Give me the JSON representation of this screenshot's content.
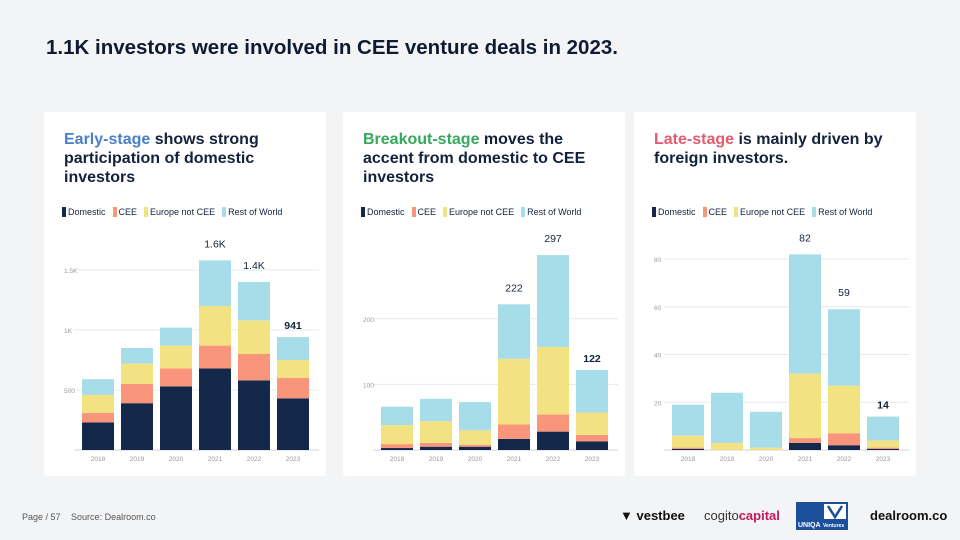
{
  "page_title": "1.1K investors were involved in CEE venture deals in 2023.",
  "colors": {
    "Domestic": "#13284b",
    "CEE": "#f8957a",
    "Europe not CEE": "#f2e282",
    "Rest of World": "#a6dde9",
    "early": "#4a80c9",
    "breakout": "#35a95a",
    "late": "#e25b6e"
  },
  "legend": [
    "Domestic",
    "CEE",
    "Europe not CEE",
    "Rest of World"
  ],
  "footer": {
    "page": "Page / 57",
    "source": "Source: Dealroom.co"
  },
  "logos": {
    "vestbee": "vestbee",
    "cogito": "cogito",
    "cogito_b": "capital",
    "uniqa": "UNIQA",
    "uniqa_v": "Ventures",
    "dealroom": "dealroom.co"
  },
  "cards": [
    {
      "hl": "Early-stage",
      "rest": " shows strong participation of domestic investors",
      "hl_color": "#4a80c9"
    },
    {
      "hl": "Breakout-stage",
      "rest": " moves the accent from domestic to CEE investors",
      "hl_color": "#35a95a"
    },
    {
      "hl": "Late-stage",
      "rest": " is mainly driven by foreign investors.",
      "hl_color": "#e25b6e"
    }
  ],
  "chart_data": [
    {
      "type": "bar",
      "stacked": true,
      "categories": [
        "2018",
        "2019",
        "2020",
        "2021",
        "2022",
        "2023"
      ],
      "ylim": [
        0,
        1750
      ],
      "yticks": [
        500,
        1000,
        1500
      ],
      "ytick_labels": [
        "500",
        "1K",
        "1.5K"
      ],
      "grid": true,
      "series": [
        {
          "name": "Domestic",
          "values": [
            230,
            390,
            530,
            680,
            580,
            430
          ]
        },
        {
          "name": "CEE",
          "values": [
            80,
            160,
            150,
            190,
            220,
            170
          ]
        },
        {
          "name": "Europe not CEE",
          "values": [
            150,
            170,
            190,
            330,
            280,
            150
          ]
        },
        {
          "name": "Rest of World",
          "values": [
            130,
            130,
            150,
            380,
            320,
            191
          ]
        }
      ],
      "total_labels": [
        "",
        "",
        "",
        "1.6K",
        "1.4K",
        "941"
      ],
      "bold_label_index": 5
    },
    {
      "type": "bar",
      "stacked": true,
      "categories": [
        "2018",
        "2019",
        "2020",
        "2021",
        "2022",
        "2023"
      ],
      "ylim": [
        0,
        320
      ],
      "yticks": [
        100,
        200
      ],
      "ytick_labels": [
        "100",
        "200"
      ],
      "grid": true,
      "series": [
        {
          "name": "Domestic",
          "values": [
            3,
            5,
            5,
            17,
            28,
            13
          ]
        },
        {
          "name": "CEE",
          "values": [
            6,
            6,
            3,
            22,
            26,
            10
          ]
        },
        {
          "name": "Europe not CEE",
          "values": [
            29,
            33,
            22,
            100,
            103,
            34
          ]
        },
        {
          "name": "Rest of World",
          "values": [
            28,
            34,
            43,
            83,
            140,
            65
          ]
        }
      ],
      "total_labels": [
        "",
        "",
        "",
        "222",
        "297",
        "122"
      ],
      "bold_label_index": 5
    },
    {
      "type": "bar",
      "stacked": true,
      "categories": [
        "2018",
        "2019",
        "2020",
        "2021",
        "2022",
        "2023"
      ],
      "ylim": [
        0,
        88
      ],
      "yticks": [
        20,
        40,
        60,
        80
      ],
      "ytick_labels": [
        "20",
        "40",
        "60",
        "80"
      ],
      "grid": true,
      "series": [
        {
          "name": "Domestic",
          "values": [
            0.5,
            0,
            0,
            3,
            2,
            0.5
          ]
        },
        {
          "name": "CEE",
          "values": [
            0.5,
            0,
            0,
            2,
            5,
            0.5
          ]
        },
        {
          "name": "Europe not CEE",
          "values": [
            5,
            3,
            1,
            27,
            20,
            3
          ]
        },
        {
          "name": "Rest of World",
          "values": [
            13,
            21,
            15,
            50,
            32,
            10
          ]
        }
      ],
      "total_labels": [
        "",
        "",
        "",
        "82",
        "59",
        "14"
      ],
      "bold_label_index": 5
    }
  ]
}
